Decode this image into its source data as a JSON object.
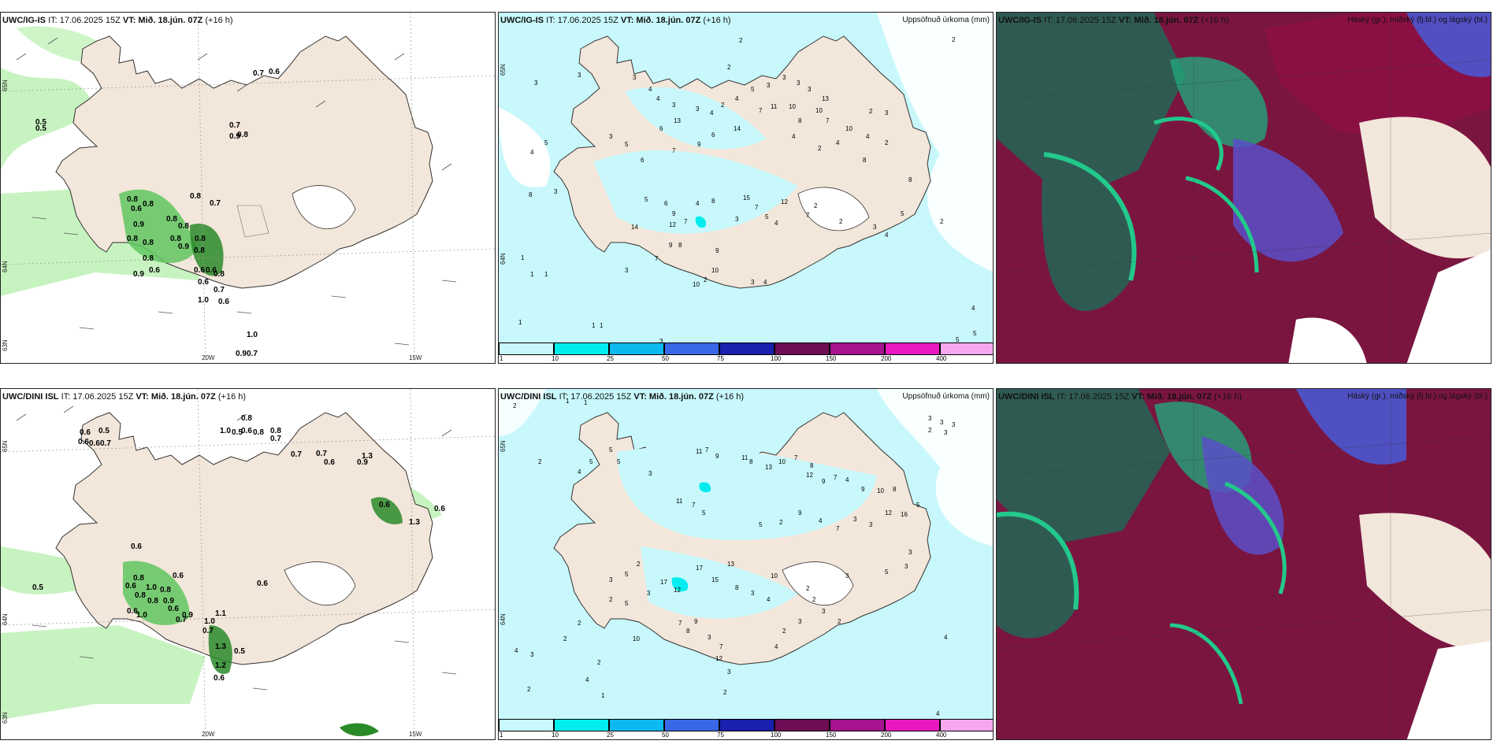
{
  "title_prefix": "IT: 17.06.2025 15Z ",
  "vt_label": "VT: Mið. 18.jún. 07Z",
  "lead": " (+16 h)",
  "precip_title": "Uppsöfnuð úrkoma (mm)",
  "cloud_title": "Háský (gr.), miðský (fj.bl.) og lágský (bl.)",
  "models": [
    {
      "name": "UWC/IG-IS",
      "wind_labels": [
        "0.7",
        "0.6",
        "0.5",
        "0.9",
        "0.7",
        "0.5",
        "0.8",
        "0.8",
        "0.8",
        "0.6",
        "0.8",
        "0.8",
        "0.8",
        "0.7",
        "0.8",
        "0.6",
        "0.8",
        "0.9",
        "0.8",
        "0.8",
        "0.6",
        "0.9",
        "0.8",
        "0.6",
        "0.8",
        "0.9",
        "0.8",
        "0.6",
        "0.7",
        "1.0",
        "0.6",
        "1.0",
        "0.9",
        "0.7"
      ],
      "precip_labels": [
        "2",
        "2",
        "3",
        "3",
        "2",
        "3",
        "4",
        "4",
        "3",
        "3",
        "4",
        "2",
        "4",
        "5",
        "3",
        "3",
        "3",
        "3",
        "5",
        "4",
        "3",
        "5",
        "6",
        "13",
        "14",
        "7",
        "11",
        "10",
        "8",
        "10",
        "13",
        "7",
        "10",
        "4",
        "2",
        "8",
        "3",
        "6",
        "7",
        "9",
        "6",
        "4",
        "2",
        "4",
        "2",
        "3",
        "8",
        "15",
        "7",
        "5",
        "12",
        "6",
        "9",
        "14",
        "7",
        "12",
        "3",
        "5",
        "4",
        "7",
        "2",
        "4",
        "8",
        "9",
        "8",
        "7",
        "9",
        "10",
        "2",
        "10",
        "2",
        "1",
        "3",
        "4",
        "3",
        "1",
        "1",
        "1",
        "1",
        "1",
        "4",
        "3",
        "5",
        "2",
        "4",
        "5",
        "8",
        "3",
        "5"
      ]
    },
    {
      "name": "UWC/DINI ISL",
      "wind_labels": [
        "0.8",
        "0.6",
        "0.5",
        "0.6",
        "0.6",
        "0.7",
        "1.0",
        "0.5",
        "0.6",
        "0.8",
        "0.8",
        "0.7",
        "0.7",
        "0.7",
        "1.3",
        "0.9",
        "0.6",
        "0.6",
        "1.3",
        "0.6",
        "0.5",
        "0.6",
        "0.8",
        "0.6",
        "0.6",
        "0.8",
        "1.0",
        "0.8",
        "0.8",
        "0.9",
        "0.6",
        "0.6",
        "0.9",
        "0.7",
        "1.1",
        "0.7",
        "1.3",
        "1.0",
        "0.5",
        "1.2",
        "1.0",
        "0.6",
        "0.6"
      ],
      "precip_labels": [
        "2",
        "1",
        "1",
        "2",
        "3",
        "3",
        "3",
        "2",
        "3",
        "4",
        "5",
        "5",
        "5",
        "3",
        "11",
        "7",
        "9",
        "11",
        "8",
        "13",
        "10",
        "7",
        "8",
        "12",
        "9",
        "7",
        "4",
        "9",
        "10",
        "8",
        "12",
        "16",
        "5",
        "3",
        "3",
        "7",
        "4",
        "9",
        "2",
        "5",
        "17",
        "13",
        "15",
        "10",
        "11",
        "7",
        "5",
        "17",
        "12",
        "8",
        "3",
        "4",
        "2",
        "2",
        "3",
        "2",
        "3",
        "2",
        "2",
        "5",
        "2",
        "5",
        "3",
        "3",
        "3",
        "5",
        "3",
        "3",
        "2",
        "7",
        "9",
        "8",
        "10",
        "3",
        "7",
        "4",
        "12",
        "3",
        "2",
        "4",
        "3",
        "2",
        "2",
        "1",
        "4",
        "4",
        "2",
        "4"
      ]
    }
  ],
  "colorbar": {
    "ticks": [
      "1",
      "10",
      "25",
      "50",
      "75",
      "100",
      "150",
      "200",
      "400"
    ],
    "colors": [
      "#c8f8fb",
      "#00ecef",
      "#0db9ee",
      "#3a67e6",
      "#1a1fae",
      "#6e0d56",
      "#a5148e",
      "#e719be",
      "#f5a8ef"
    ]
  },
  "axis": {
    "lat_top": "65N",
    "lat_mid": "64N",
    "lat_bot": "63N",
    "lon_left": "20W",
    "lon_right": "15W"
  }
}
